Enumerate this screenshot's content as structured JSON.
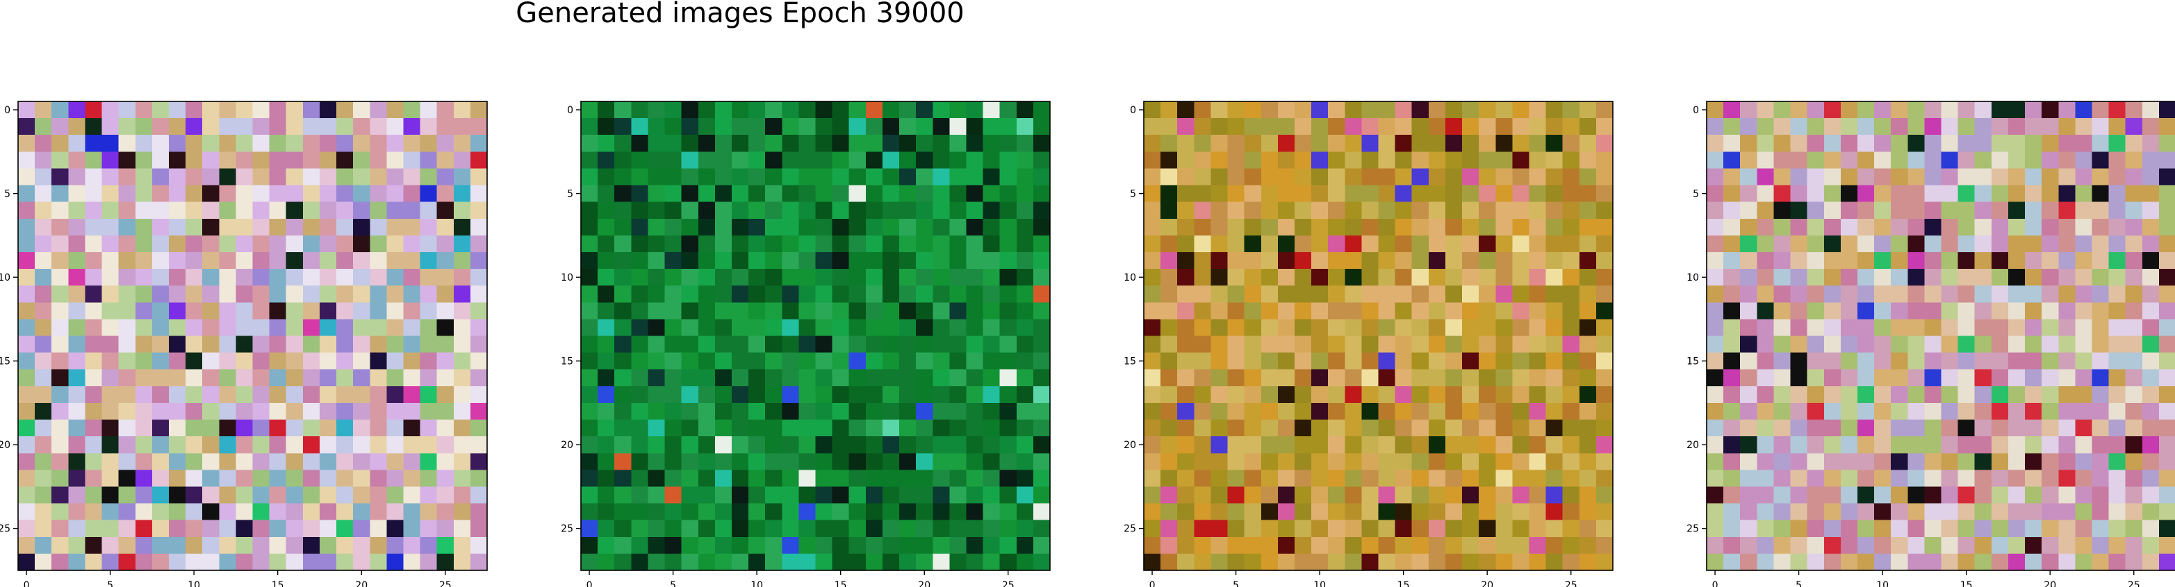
{
  "figure": {
    "title": "Generated images Epoch 39000"
  },
  "chart_data": [
    {
      "type": "heatmap",
      "panel": 1,
      "grid_size": 28,
      "x_ticks": [
        "0",
        "5",
        "10",
        "15",
        "20",
        "25"
      ],
      "y_ticks": [
        "0",
        "5",
        "10",
        "15",
        "20",
        "25"
      ],
      "palette": [
        "#e8d4a8",
        "#d9b98c",
        "#c9a96c",
        "#e6c3d6",
        "#d7b2e6",
        "#c3c9e6",
        "#e9e3f2",
        "#b8d39a",
        "#9cc27c",
        "#d79aa3",
        "#c77ea8",
        "#9b86d6",
        "#7fb0c8",
        "#f0e8d8",
        "#caa0d0"
      ],
      "dark_palette": [
        "#2a1015",
        "#1a0f3a",
        "#0d2a18",
        "#3a1a5a",
        "#101010"
      ],
      "vivid_palette": [
        "#1e2bd6",
        "#d21f2f",
        "#1fc46a",
        "#d63aa8",
        "#7b2ee6",
        "#2fb0c8"
      ],
      "dark_ratio": 0.06,
      "vivid_ratio": 0.05,
      "seed": 11
    },
    {
      "type": "heatmap",
      "panel": 2,
      "grid_size": 28,
      "x_ticks": [
        "0",
        "5",
        "10",
        "15",
        "20",
        "25"
      ],
      "y_ticks": [
        "0",
        "5",
        "10",
        "15",
        "20",
        "25"
      ],
      "palette": [
        "#0b7d2a",
        "#129434",
        "#0a6a24",
        "#1aa040",
        "#0e8a3a",
        "#07561c",
        "#16a64a",
        "#0f7a30",
        "#2aa858",
        "#1c8c42"
      ],
      "dark_palette": [
        "#04301a",
        "#062a12",
        "#0a3a32",
        "#0a1a14"
      ],
      "vivid_palette": [
        "#22c0a0",
        "#5ad6a8",
        "#2a4ae0",
        "#e8f0e8",
        "#d65a2a"
      ],
      "dark_ratio": 0.12,
      "vivid_ratio": 0.04,
      "seed": 23
    },
    {
      "type": "heatmap",
      "panel": 3,
      "grid_size": 28,
      "x_ticks": [
        "0",
        "5",
        "10",
        "15",
        "20",
        "25"
      ],
      "y_ticks": [
        "0",
        "5",
        "10",
        "15",
        "20",
        "25"
      ],
      "palette": [
        "#c8a030",
        "#d49a2a",
        "#b8902a",
        "#a8921f",
        "#c7b050",
        "#d8a85a",
        "#b87a2a",
        "#9a8a20",
        "#d4b860",
        "#c4904a",
        "#e0b070",
        "#a4a040"
      ],
      "dark_palette": [
        "#5a0a0a",
        "#2a1a05",
        "#0a2a0a",
        "#3a0a20"
      ],
      "vivid_palette": [
        "#c01818",
        "#4a3ad6",
        "#d65aa0",
        "#e08a8a",
        "#f0e0a0"
      ],
      "dark_ratio": 0.06,
      "vivid_ratio": 0.06,
      "seed": 37
    },
    {
      "type": "heatmap",
      "panel": 4,
      "grid_size": 28,
      "x_ticks": [
        "0",
        "5",
        "10",
        "15",
        "20",
        "25"
      ],
      "y_ticks": [
        "0",
        "5",
        "10",
        "15",
        "20",
        "25"
      ],
      "palette": [
        "#d8b070",
        "#c8a050",
        "#e0c0a0",
        "#d0a0b8",
        "#c890c0",
        "#b0a0d0",
        "#e0d0e8",
        "#c0d090",
        "#a8c070",
        "#d09090",
        "#c87aa0",
        "#e8e0d0",
        "#b0c8d8"
      ],
      "dark_palette": [
        "#3a0a14",
        "#1a103a",
        "#0a2a1a",
        "#101010"
      ],
      "vivid_palette": [
        "#2a3ad6",
        "#d62a3a",
        "#2ac06a",
        "#c83ab0",
        "#8a3ae0"
      ],
      "dark_ratio": 0.06,
      "vivid_ratio": 0.05,
      "seed": 53
    }
  ]
}
